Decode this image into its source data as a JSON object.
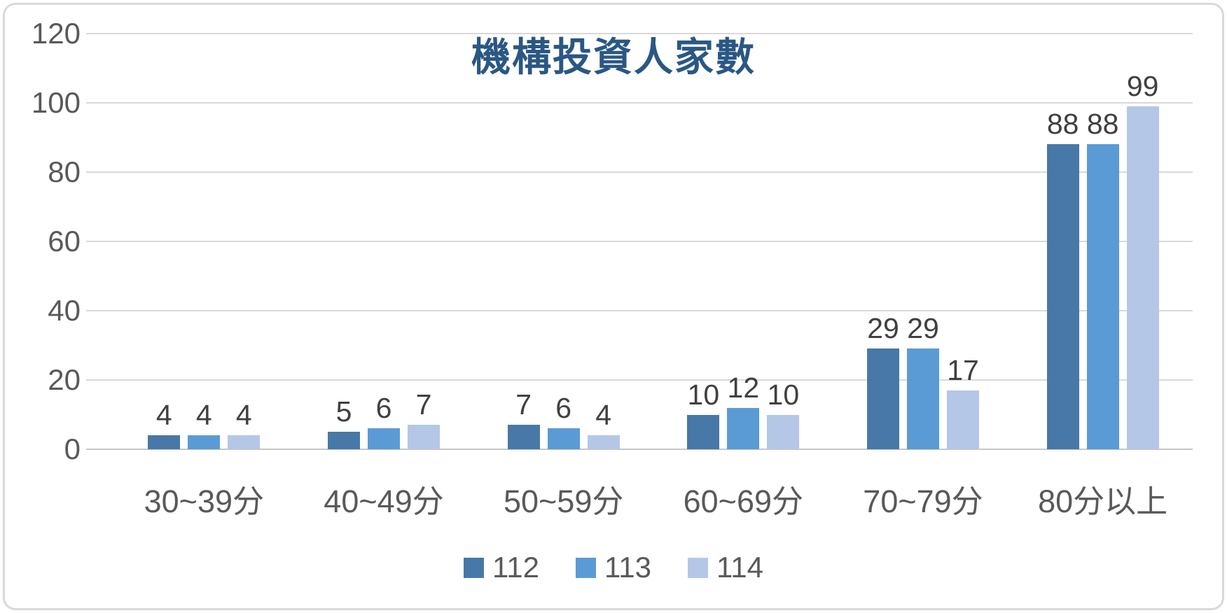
{
  "chart_data": {
    "type": "bar",
    "title": "機構投資人家數",
    "categories": [
      "30~39分",
      "40~49分",
      "50~59分",
      "60~69分",
      "70~79分",
      "80分以上"
    ],
    "series": [
      {
        "name": "112",
        "color": "#4878A8",
        "values": [
          4,
          5,
          7,
          10,
          29,
          88
        ]
      },
      {
        "name": "113",
        "color": "#5B9BD5",
        "values": [
          4,
          6,
          6,
          12,
          29,
          88
        ]
      },
      {
        "name": "114",
        "color": "#B4C7E7",
        "values": [
          4,
          7,
          4,
          10,
          17,
          99
        ]
      }
    ],
    "ylim": [
      0,
      120
    ],
    "yticks": [
      0,
      20,
      40,
      60,
      80,
      100,
      120
    ],
    "grid": true,
    "data_labels": true,
    "legend_position": "bottom",
    "colors": {
      "title": "#2A5784",
      "axis_labels": "#595959",
      "value_labels": "#404040",
      "gridline": "#D9D9D9",
      "baseline": "#C6C6C6",
      "frame_border": "#D9D9D9",
      "background": "#FFFFFF"
    }
  }
}
